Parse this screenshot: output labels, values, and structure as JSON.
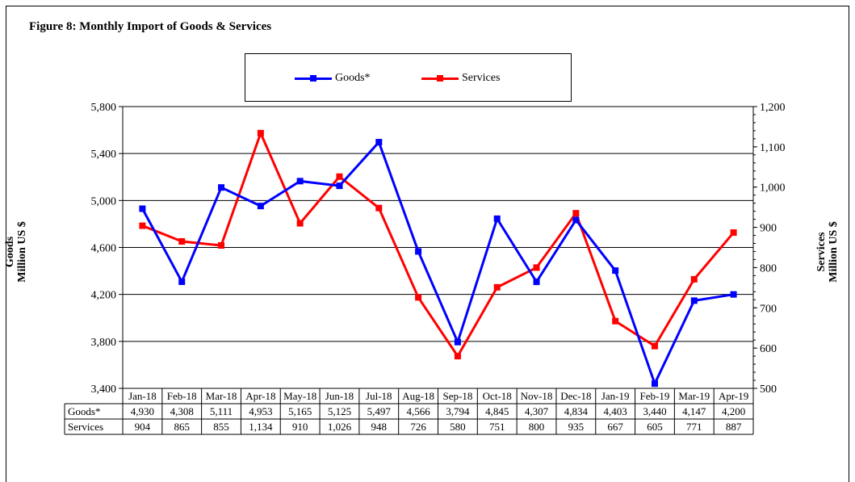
{
  "chart_data": {
    "type": "line",
    "title": "Figure 8: Monthly Import of Goods & Services",
    "categories": [
      "Jan-18",
      "Feb-18",
      "Mar-18",
      "Apr-18",
      "May-18",
      "Jun-18",
      "Jul-18",
      "Aug-18",
      "Sep-18",
      "Oct-18",
      "Nov-18",
      "Dec-18",
      "Jan-19",
      "Feb-19",
      "Mar-19",
      "Apr-19"
    ],
    "left_axis": {
      "label_line1": "Goods",
      "label_line2": "Million US $",
      "ylim": [
        3400,
        5800
      ],
      "ticks": [
        3400,
        3800,
        4200,
        4600,
        5000,
        5400,
        5800
      ],
      "tick_labels": [
        "3,400",
        "3,800",
        "4,200",
        "4,600",
        "5,000",
        "5,400",
        "5,800"
      ]
    },
    "right_axis": {
      "label_line1": "Services",
      "label_line2": "Million US $",
      "ylim": [
        500,
        1200
      ],
      "ticks": [
        500,
        600,
        700,
        800,
        900,
        1000,
        1100,
        1200
      ],
      "tick_labels": [
        "500",
        "600",
        "700",
        "800",
        "900",
        "1,000",
        "1,100",
        "1,200"
      ]
    },
    "series": [
      {
        "name": "Goods*",
        "axis": "left",
        "color": "#0000ff",
        "values": [
          4930,
          4308,
          5111,
          4953,
          5165,
          5125,
          5497,
          4566,
          3794,
          4845,
          4307,
          4834,
          4403,
          3440,
          4147,
          4200
        ],
        "value_labels": [
          "4,930",
          "4,308",
          "5,111",
          "4,953",
          "5,165",
          "5,125",
          "5,497",
          "4,566",
          "3,794",
          "4,845",
          "4,307",
          "4,834",
          "4,403",
          "3,440",
          "4,147",
          "4,200"
        ]
      },
      {
        "name": "Services",
        "axis": "right",
        "color": "#ff0000",
        "values": [
          904,
          865,
          855,
          1134,
          910,
          1026,
          948,
          726,
          580,
          751,
          800,
          935,
          667,
          605,
          771,
          887
        ],
        "value_labels": [
          "904",
          "865",
          "855",
          "1,134",
          "910",
          "1,026",
          "948",
          "726",
          "580",
          "751",
          "800",
          "935",
          "667",
          "605",
          "771",
          "887"
        ]
      }
    ],
    "grid": true,
    "legend_position": "top-center",
    "data_table": true
  }
}
